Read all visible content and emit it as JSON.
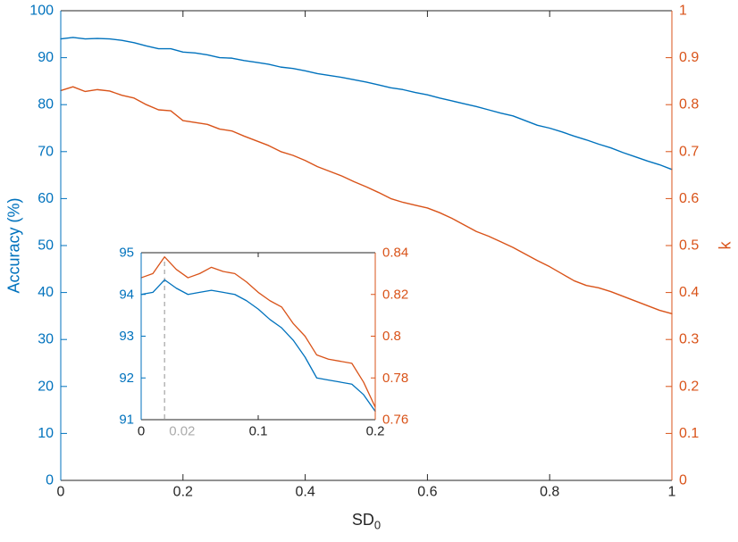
{
  "labels": {
    "left_y": "Accuracy (%)",
    "right_y": "k",
    "x_main": "SD",
    "x_sub": "0"
  },
  "colors": {
    "left_axis": "#0072BD",
    "right_axis": "#D95319",
    "x_axis": "#262626",
    "annotation": "#ABABAB",
    "background": "#FFFFFF"
  },
  "chart_data": [
    {
      "id": "main",
      "type": "line",
      "title": "",
      "xlabel": "SD_0",
      "ylabel_left": "Accuracy (%)",
      "ylabel_right": "k",
      "xlim": [
        0,
        1
      ],
      "ylim_left": [
        0,
        100
      ],
      "ylim_right": [
        0,
        1
      ],
      "grid": false,
      "legend": "none",
      "xticks": {
        "values": [
          0,
          0.2,
          0.4,
          0.6,
          0.8,
          1
        ],
        "labels": [
          "0",
          "0.2",
          "0.4",
          "0.6",
          "0.8",
          "1"
        ]
      },
      "yticks_left": {
        "values": [
          0,
          10,
          20,
          30,
          40,
          50,
          60,
          70,
          80,
          90,
          100
        ],
        "labels": [
          "0",
          "10",
          "20",
          "30",
          "40",
          "50",
          "60",
          "70",
          "80",
          "90",
          "100"
        ]
      },
      "yticks_right": {
        "values": [
          0,
          0.1,
          0.2,
          0.3,
          0.4,
          0.5,
          0.6,
          0.7,
          0.8,
          0.9,
          1
        ],
        "labels": [
          "0",
          "0.1",
          "0.2",
          "0.3",
          "0.4",
          "0.5",
          "0.6",
          "0.7",
          "0.8",
          "0.9",
          "1"
        ]
      },
      "series": [
        {
          "name": "accuracy",
          "axis": "left",
          "color": "#0072BD",
          "x": [
            0,
            0.02,
            0.04,
            0.06,
            0.08,
            0.1,
            0.12,
            0.14,
            0.16,
            0.18,
            0.2,
            0.22,
            0.24,
            0.26,
            0.28,
            0.3,
            0.32,
            0.34,
            0.36,
            0.38,
            0.4,
            0.42,
            0.44,
            0.46,
            0.48,
            0.5,
            0.52,
            0.54,
            0.56,
            0.58,
            0.6,
            0.62,
            0.64,
            0.66,
            0.68,
            0.7,
            0.72,
            0.74,
            0.76,
            0.78,
            0.8,
            0.82,
            0.84,
            0.86,
            0.88,
            0.9,
            0.92,
            0.94,
            0.96,
            0.98,
            1
          ],
          "y": [
            94,
            94.3,
            94,
            94.1,
            94,
            93.7,
            93.2,
            92.5,
            91.9,
            91.9,
            91.2,
            91,
            90.6,
            90,
            89.9,
            89.4,
            89,
            88.6,
            88,
            87.7,
            87.2,
            86.6,
            86.2,
            85.8,
            85.3,
            84.8,
            84.2,
            83.6,
            83.2,
            82.6,
            82.1,
            81.4,
            80.8,
            80.2,
            79.6,
            78.9,
            78.2,
            77.6,
            76.6,
            75.6,
            75,
            74.2,
            73.3,
            72.5,
            71.6,
            70.8,
            69.8,
            68.9,
            68,
            67.2,
            66.2
          ]
        },
        {
          "name": "kappa",
          "axis": "right",
          "color": "#D95319",
          "x": [
            0,
            0.02,
            0.04,
            0.06,
            0.08,
            0.1,
            0.12,
            0.14,
            0.16,
            0.18,
            0.2,
            0.22,
            0.24,
            0.26,
            0.28,
            0.3,
            0.32,
            0.34,
            0.36,
            0.38,
            0.4,
            0.42,
            0.44,
            0.46,
            0.48,
            0.5,
            0.52,
            0.54,
            0.56,
            0.58,
            0.6,
            0.62,
            0.64,
            0.66,
            0.68,
            0.7,
            0.72,
            0.74,
            0.76,
            0.78,
            0.8,
            0.82,
            0.84,
            0.86,
            0.88,
            0.9,
            0.92,
            0.94,
            0.96,
            0.98,
            1
          ],
          "y": [
            0.83,
            0.838,
            0.828,
            0.832,
            0.829,
            0.82,
            0.814,
            0.8,
            0.789,
            0.787,
            0.766,
            0.762,
            0.758,
            0.748,
            0.744,
            0.733,
            0.723,
            0.713,
            0.7,
            0.692,
            0.681,
            0.668,
            0.658,
            0.648,
            0.636,
            0.625,
            0.613,
            0.6,
            0.592,
            0.586,
            0.58,
            0.57,
            0.558,
            0.544,
            0.53,
            0.52,
            0.508,
            0.496,
            0.482,
            0.468,
            0.455,
            0.44,
            0.425,
            0.415,
            0.41,
            0.402,
            0.392,
            0.382,
            0.372,
            0.362,
            0.355
          ]
        }
      ]
    },
    {
      "id": "inset",
      "type": "line",
      "title": "",
      "xlim": [
        0,
        0.2
      ],
      "ylim_left": [
        91,
        95
      ],
      "ylim_right": [
        0.76,
        0.84
      ],
      "grid": false,
      "legend": "none",
      "annotation": {
        "x": 0.02,
        "top": 0.838,
        "label": "0.02",
        "style": "dashed-vertical"
      },
      "xticks": {
        "values": [
          0,
          0.1,
          0.2
        ],
        "labels": [
          "0",
          "0.1",
          "0.2"
        ]
      },
      "yticks_left": {
        "values": [
          91,
          92,
          93,
          94,
          95
        ],
        "labels": [
          "91",
          "92",
          "93",
          "94",
          "95"
        ]
      },
      "yticks_right": {
        "values": [
          0.76,
          0.78,
          0.8,
          0.82,
          0.84
        ],
        "labels": [
          "0.76",
          "0.78",
          "0.8",
          "0.82",
          "0.84"
        ]
      },
      "series": [
        {
          "name": "accuracy-zoom",
          "axis": "left",
          "color": "#0072BD",
          "x": [
            0,
            0.01,
            0.02,
            0.03,
            0.04,
            0.05,
            0.06,
            0.07,
            0.08,
            0.09,
            0.1,
            0.11,
            0.12,
            0.13,
            0.14,
            0.15,
            0.16,
            0.17,
            0.18,
            0.19,
            0.2
          ],
          "y": [
            94,
            94.05,
            94.35,
            94.15,
            94,
            94.05,
            94.1,
            94.05,
            94,
            93.85,
            93.65,
            93.4,
            93.2,
            92.9,
            92.5,
            92,
            91.95,
            91.9,
            91.85,
            91.6,
            91.2
          ]
        },
        {
          "name": "kappa-zoom",
          "axis": "right",
          "color": "#D95319",
          "x": [
            0,
            0.01,
            0.02,
            0.03,
            0.04,
            0.05,
            0.06,
            0.07,
            0.08,
            0.09,
            0.1,
            0.11,
            0.12,
            0.13,
            0.14,
            0.15,
            0.16,
            0.17,
            0.18,
            0.19,
            0.2
          ],
          "y": [
            0.828,
            0.83,
            0.838,
            0.832,
            0.828,
            0.83,
            0.833,
            0.831,
            0.83,
            0.826,
            0.821,
            0.817,
            0.814,
            0.806,
            0.8,
            0.791,
            0.789,
            0.788,
            0.787,
            0.778,
            0.766
          ]
        }
      ]
    }
  ]
}
